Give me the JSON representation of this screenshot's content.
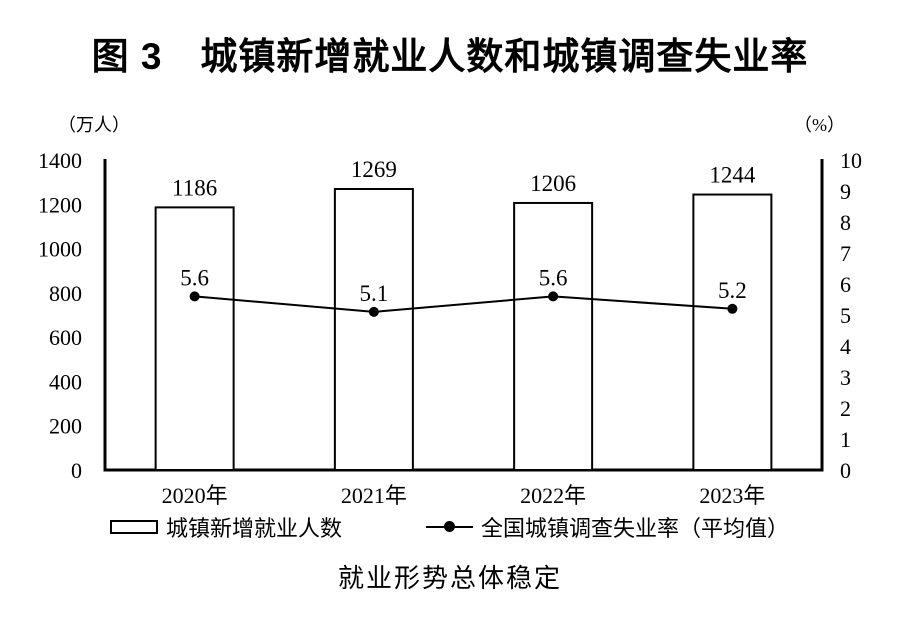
{
  "page": {
    "background": "#ffffff",
    "text_color": "#000000"
  },
  "title": "图 3　城镇新增就业人数和城镇调查失业率",
  "chart_data": {
    "type": "combo",
    "categories": [
      "2020年",
      "2021年",
      "2022年",
      "2023年"
    ],
    "series": [
      {
        "name": "城镇新增就业人数",
        "type": "bar",
        "axis": "left",
        "values": [
          1186,
          1269,
          1206,
          1244
        ]
      },
      {
        "name": "全国城镇调查失业率（平均值）",
        "type": "line",
        "axis": "right",
        "values": [
          5.6,
          5.1,
          5.6,
          5.2
        ]
      }
    ],
    "left_axis": {
      "unit": "（万人）",
      "min": 0,
      "max": 1400,
      "ticks": [
        1400,
        1200,
        1000,
        800,
        600,
        400,
        200,
        0
      ]
    },
    "right_axis": {
      "unit": "（%）",
      "min": 0,
      "max": 10,
      "ticks": [
        10,
        9,
        8,
        7,
        6,
        5,
        4,
        3,
        2,
        1,
        0
      ]
    },
    "grid": false,
    "legend_position": "bottom",
    "colors": {
      "bar_fill": "#ffffff",
      "bar_border": "#000000",
      "line": "#000000",
      "marker": "#000000",
      "axis": "#000000",
      "text": "#000000"
    }
  },
  "legend": {
    "items": [
      {
        "label": "城镇新增就业人数",
        "marker": "bar-swatch"
      },
      {
        "label": "全国城镇调查失业率（平均值）",
        "marker": "line-dot"
      }
    ]
  },
  "caption": "就业形势总体稳定"
}
